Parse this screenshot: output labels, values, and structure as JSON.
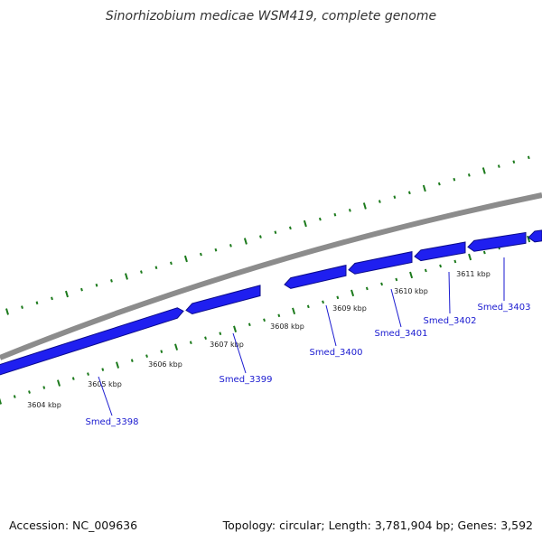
{
  "title": "Sinorhizobium medicae WSM419, complete genome",
  "footer": {
    "accession": "Accession: NC_009636",
    "summary": "Topology: circular; Length: 3,781,904 bp; Genes: 3,592"
  },
  "colors": {
    "backbone": "#8c8c8c",
    "gene_fill": "#1f1ff0",
    "gene_edge": "#0b0b8a",
    "dots": "#1c7a1c",
    "gene_label": "#1a1ad0"
  },
  "ticks": [
    "3604 kbp",
    "3605 kbp",
    "3606 kbp",
    "3607 kbp",
    "3608 kbp",
    "3609 kbp",
    "3610 kbp",
    "3611 kbp"
  ],
  "genes": [
    "Smed_3398",
    "Smed_3399",
    "Smed_3400",
    "Smed_3401",
    "Smed_3402",
    "Smed_3403"
  ]
}
